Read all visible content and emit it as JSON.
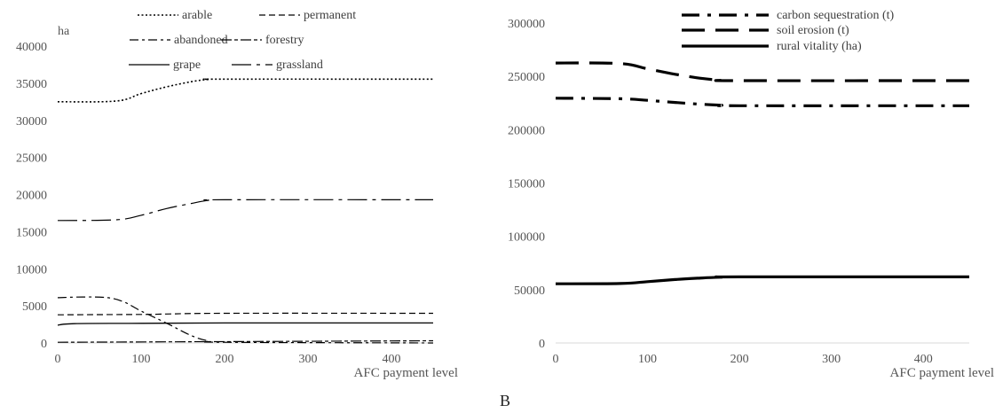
{
  "panel_letter": "B",
  "chart_data": [
    {
      "type": "line",
      "ylabel": "ha",
      "xlabel": "AFC payment level",
      "xlim": [
        0,
        450
      ],
      "ylim": [
        0,
        40000
      ],
      "xticks": [
        "0",
        "100",
        "200",
        "300",
        "400"
      ],
      "yticks": [
        "0",
        "5000",
        "10000",
        "15000",
        "20000",
        "25000",
        "30000",
        "35000",
        "40000"
      ],
      "grid": false,
      "legend_position": "top",
      "series": [
        {
          "name": "arable",
          "style": "dotted",
          "x": [
            0,
            70,
            100,
            130,
            160,
            180,
            200,
            450
          ],
          "y": [
            32500,
            32600,
            33600,
            34500,
            35200,
            35500,
            35550,
            35550
          ]
        },
        {
          "name": "permanent",
          "style": "dashed",
          "x": [
            0,
            100,
            130,
            200,
            450
          ],
          "y": [
            3800,
            3850,
            3900,
            4000,
            4000
          ]
        },
        {
          "name": "abandoned",
          "style": "dashdot",
          "x": [
            0,
            30,
            60,
            80,
            100,
            130,
            160,
            180,
            200,
            450
          ],
          "y": [
            6100,
            6200,
            6100,
            5500,
            4300,
            2700,
            1000,
            300,
            100,
            0
          ]
        },
        {
          "name": "forestry",
          "style": "dashdot-dense",
          "x": [
            0,
            450
          ],
          "y": [
            100,
            300
          ]
        },
        {
          "name": "grape",
          "style": "solid",
          "x": [
            0,
            20,
            100,
            200,
            450
          ],
          "y": [
            2400,
            2600,
            2650,
            2700,
            2700
          ]
        },
        {
          "name": "grassland",
          "style": "long-dash-dot",
          "x": [
            0,
            70,
            100,
            130,
            160,
            180,
            200,
            450
          ],
          "y": [
            16500,
            16600,
            17200,
            18100,
            18800,
            19200,
            19300,
            19300
          ]
        }
      ]
    },
    {
      "type": "line",
      "ylabel": "",
      "xlabel": "AFC payment level",
      "xlim": [
        0,
        450
      ],
      "ylim": [
        0,
        300000
      ],
      "xticks": [
        "0",
        "100",
        "200",
        "300",
        "400"
      ],
      "yticks": [
        "0",
        "50000",
        "100000",
        "150000",
        "200000",
        "250000",
        "300000"
      ],
      "grid": false,
      "legend_position": "top",
      "series": [
        {
          "name": "carbon sequestration (t)",
          "style": "long-dash-dot-thick",
          "x": [
            0,
            70,
            100,
            130,
            160,
            180,
            200,
            450
          ],
          "y": [
            229500,
            229000,
            227500,
            225500,
            223800,
            223000,
            222500,
            222500
          ]
        },
        {
          "name": "soil erosion (t)",
          "style": "long-dash-thick",
          "x": [
            0,
            70,
            100,
            130,
            160,
            180,
            200,
            450
          ],
          "y": [
            262500,
            262000,
            257000,
            252000,
            248000,
            246500,
            246000,
            246000
          ]
        },
        {
          "name": "rural vitality (ha)",
          "style": "solid-thick",
          "x": [
            0,
            70,
            100,
            130,
            160,
            180,
            200,
            450
          ],
          "y": [
            55500,
            55800,
            57500,
            59500,
            61000,
            61700,
            62000,
            62000
          ]
        }
      ]
    }
  ]
}
